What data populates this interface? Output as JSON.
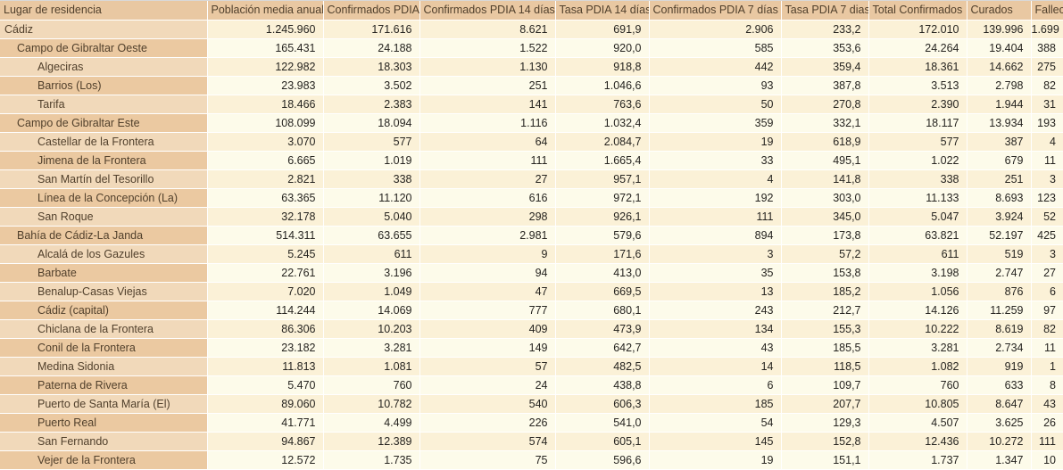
{
  "colors": {
    "header_bg": "#e9c8a2",
    "header_text": "#51402c",
    "row_odd_name_bg": "#f1d9ba",
    "row_odd_value_bg": "#fbf1d7",
    "row_even_name_bg": "#ebc9a1",
    "row_even_value_bg": "#fdfbea",
    "name_text": "#51402c",
    "value_text": "#262420",
    "gridline": "#ffffff"
  },
  "chart_data": {
    "type": "table",
    "columns": [
      "Lugar de residencia",
      "Población media anual",
      "Confirmados PDIA",
      "Confirmados PDIA 14 días",
      "Tasa PDIA 14 días",
      "Confirmados PDIA 7 días",
      "Tasa PDIA 7 dias",
      "Total Confirmados",
      "Curados",
      "Fallecidos"
    ],
    "rows": [
      {
        "name": "Cádiz",
        "level": 0,
        "values": [
          "1.245.960",
          "171.616",
          "8.621",
          "691,9",
          "2.906",
          "233,2",
          "172.010",
          "139.996",
          "1.699"
        ]
      },
      {
        "name": "Campo de Gibraltar Oeste",
        "level": 1,
        "values": [
          "165.431",
          "24.188",
          "1.522",
          "920,0",
          "585",
          "353,6",
          "24.264",
          "19.404",
          "388"
        ]
      },
      {
        "name": "Algeciras",
        "level": 2,
        "values": [
          "122.982",
          "18.303",
          "1.130",
          "918,8",
          "442",
          "359,4",
          "18.361",
          "14.662",
          "275"
        ]
      },
      {
        "name": "Barrios (Los)",
        "level": 2,
        "values": [
          "23.983",
          "3.502",
          "251",
          "1.046,6",
          "93",
          "387,8",
          "3.513",
          "2.798",
          "82"
        ]
      },
      {
        "name": "Tarifa",
        "level": 2,
        "values": [
          "18.466",
          "2.383",
          "141",
          "763,6",
          "50",
          "270,8",
          "2.390",
          "1.944",
          "31"
        ]
      },
      {
        "name": "Campo de Gibraltar Este",
        "level": 1,
        "values": [
          "108.099",
          "18.094",
          "1.116",
          "1.032,4",
          "359",
          "332,1",
          "18.117",
          "13.934",
          "193"
        ]
      },
      {
        "name": "Castellar de la Frontera",
        "level": 2,
        "values": [
          "3.070",
          "577",
          "64",
          "2.084,7",
          "19",
          "618,9",
          "577",
          "387",
          "4"
        ]
      },
      {
        "name": "Jimena de la Frontera",
        "level": 2,
        "values": [
          "6.665",
          "1.019",
          "111",
          "1.665,4",
          "33",
          "495,1",
          "1.022",
          "679",
          "11"
        ]
      },
      {
        "name": "San Martín del Tesorillo",
        "level": 2,
        "values": [
          "2.821",
          "338",
          "27",
          "957,1",
          "4",
          "141,8",
          "338",
          "251",
          "3"
        ]
      },
      {
        "name": "Línea de la Concepción (La)",
        "level": 2,
        "values": [
          "63.365",
          "11.120",
          "616",
          "972,1",
          "192",
          "303,0",
          "11.133",
          "8.693",
          "123"
        ]
      },
      {
        "name": "San Roque",
        "level": 2,
        "values": [
          "32.178",
          "5.040",
          "298",
          "926,1",
          "111",
          "345,0",
          "5.047",
          "3.924",
          "52"
        ]
      },
      {
        "name": "Bahía de Cádiz-La Janda",
        "level": 1,
        "values": [
          "514.311",
          "63.655",
          "2.981",
          "579,6",
          "894",
          "173,8",
          "63.821",
          "52.197",
          "425"
        ]
      },
      {
        "name": "Alcalá de los Gazules",
        "level": 2,
        "values": [
          "5.245",
          "611",
          "9",
          "171,6",
          "3",
          "57,2",
          "611",
          "519",
          "3"
        ]
      },
      {
        "name": "Barbate",
        "level": 2,
        "values": [
          "22.761",
          "3.196",
          "94",
          "413,0",
          "35",
          "153,8",
          "3.198",
          "2.747",
          "27"
        ]
      },
      {
        "name": "Benalup-Casas Viejas",
        "level": 2,
        "values": [
          "7.020",
          "1.049",
          "47",
          "669,5",
          "13",
          "185,2",
          "1.056",
          "876",
          "6"
        ]
      },
      {
        "name": "Cádiz (capital)",
        "level": 2,
        "values": [
          "114.244",
          "14.069",
          "777",
          "680,1",
          "243",
          "212,7",
          "14.126",
          "11.259",
          "97"
        ]
      },
      {
        "name": "Chiclana de la Frontera",
        "level": 2,
        "values": [
          "86.306",
          "10.203",
          "409",
          "473,9",
          "134",
          "155,3",
          "10.222",
          "8.619",
          "82"
        ]
      },
      {
        "name": "Conil de la Frontera",
        "level": 2,
        "values": [
          "23.182",
          "3.281",
          "149",
          "642,7",
          "43",
          "185,5",
          "3.281",
          "2.734",
          "11"
        ]
      },
      {
        "name": "Medina Sidonia",
        "level": 2,
        "values": [
          "11.813",
          "1.081",
          "57",
          "482,5",
          "14",
          "118,5",
          "1.082",
          "919",
          "1"
        ]
      },
      {
        "name": "Paterna de Rivera",
        "level": 2,
        "values": [
          "5.470",
          "760",
          "24",
          "438,8",
          "6",
          "109,7",
          "760",
          "633",
          "8"
        ]
      },
      {
        "name": "Puerto de Santa María (El)",
        "level": 2,
        "values": [
          "89.060",
          "10.782",
          "540",
          "606,3",
          "185",
          "207,7",
          "10.805",
          "8.647",
          "43"
        ]
      },
      {
        "name": "Puerto Real",
        "level": 2,
        "values": [
          "41.771",
          "4.499",
          "226",
          "541,0",
          "54",
          "129,3",
          "4.507",
          "3.625",
          "26"
        ]
      },
      {
        "name": "San Fernando",
        "level": 2,
        "values": [
          "94.867",
          "12.389",
          "574",
          "605,1",
          "145",
          "152,8",
          "12.436",
          "10.272",
          "111"
        ]
      },
      {
        "name": "Vejer de la Frontera",
        "level": 2,
        "values": [
          "12.572",
          "1.735",
          "75",
          "596,6",
          "19",
          "151,1",
          "1.737",
          "1.347",
          "10"
        ]
      }
    ]
  }
}
